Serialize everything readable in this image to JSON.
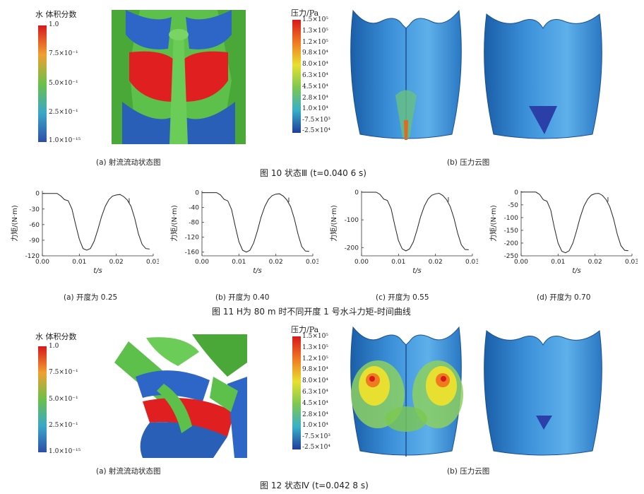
{
  "fig10": {
    "a": {
      "legend_title": "水 体积分数",
      "ticks": [
        "1.0",
        "7.5×10⁻¹",
        "5.0×10⁻¹",
        "2.5×10⁻¹",
        "1.0×10⁻¹⁵"
      ],
      "caption": "(a)  射流流动状态图"
    },
    "b": {
      "legend_title": "压力/Pa",
      "ticks": [
        "1.5×10⁵",
        "1.3×10⁵",
        "1.2×10⁵",
        "9.8×10⁴",
        "8.0×10⁴",
        "6.3×10⁴",
        "4.5×10⁴",
        "2.8×10⁴",
        "1.0×10⁴",
        "-7.5×10³",
        "-2.5×10⁴"
      ],
      "caption": "(b)  压力云图"
    },
    "title": "图 10    状态Ⅲ  (t=0.040 6 s)"
  },
  "fig11": {
    "title": "图 11    H为 80 m 时不同开度 1 号水斗力矩-时间曲线",
    "ylabel": "力矩/(N·m)",
    "xlabel": "t/s",
    "xticks": [
      "0.00",
      "0.01",
      "0.02",
      "0.03"
    ],
    "annotation": "I",
    "captions": [
      "(a)  开度为 0.25",
      "(b)  开度为 0.40",
      "(c)  开度为 0.55",
      "(d)  开度为 0.70"
    ]
  },
  "chart_data": [
    {
      "type": "line",
      "xlabel": "t/s",
      "ylabel": "力矩/(N·m)",
      "xlim": [
        0,
        0.03
      ],
      "ylim": [
        -120,
        5
      ],
      "yticks": [
        0,
        -30,
        -60,
        -90,
        -120
      ],
      "series": [
        {
          "x": [
            0,
            0.002,
            0.004,
            0.005,
            0.006,
            0.007,
            0.008,
            0.009,
            0.01,
            0.011,
            0.012,
            0.013,
            0.014,
            0.015,
            0.016,
            0.017,
            0.018,
            0.019,
            0.02,
            0.021,
            0.022,
            0.023,
            0.024,
            0.025,
            0.026,
            0.027,
            0.028,
            0.029
          ],
          "y": [
            0,
            0,
            0,
            -5,
            -12,
            -14,
            -30,
            -60,
            -88,
            -106,
            -109,
            -106,
            -92,
            -70,
            -45,
            -25,
            -12,
            -5,
            -3,
            -2,
            -6,
            -13,
            -25,
            -48,
            -78,
            -98,
            -106,
            -107
          ]
        }
      ]
    },
    {
      "type": "line",
      "xlabel": "t/s",
      "ylabel": "力矩/(N·m)",
      "xlim": [
        0,
        0.03
      ],
      "ylim": [
        -170,
        5
      ],
      "yticks": [
        0,
        -40,
        -80,
        -120,
        -160
      ],
      "series": [
        {
          "x": [
            0,
            0.002,
            0.004,
            0.005,
            0.006,
            0.007,
            0.008,
            0.009,
            0.01,
            0.011,
            0.012,
            0.013,
            0.014,
            0.015,
            0.016,
            0.017,
            0.018,
            0.019,
            0.02,
            0.021,
            0.022,
            0.023,
            0.024,
            0.025,
            0.026,
            0.027,
            0.028,
            0.029
          ],
          "y": [
            0,
            0,
            0,
            -6,
            -18,
            -22,
            -45,
            -90,
            -132,
            -155,
            -160,
            -155,
            -135,
            -103,
            -66,
            -37,
            -18,
            -8,
            -4,
            -3,
            -9,
            -20,
            -38,
            -70,
            -112,
            -145,
            -157,
            -158
          ]
        }
      ]
    },
    {
      "type": "line",
      "xlabel": "t/s",
      "ylabel": "力矩/(N·m)",
      "xlim": [
        0,
        0.03
      ],
      "ylim": [
        -230,
        5
      ],
      "yticks": [
        0,
        -100,
        -200
      ],
      "series": [
        {
          "x": [
            0,
            0.002,
            0.004,
            0.005,
            0.006,
            0.007,
            0.008,
            0.009,
            0.01,
            0.011,
            0.012,
            0.013,
            0.014,
            0.015,
            0.016,
            0.017,
            0.018,
            0.019,
            0.02,
            0.021,
            0.022,
            0.023,
            0.024,
            0.025,
            0.026,
            0.027,
            0.028,
            0.029
          ],
          "y": [
            0,
            0,
            0,
            -8,
            -25,
            -30,
            -60,
            -120,
            -175,
            -205,
            -212,
            -205,
            -180,
            -137,
            -88,
            -50,
            -25,
            -11,
            -6,
            -4,
            -12,
            -27,
            -52,
            -93,
            -148,
            -190,
            -207,
            -208
          ]
        }
      ]
    },
    {
      "type": "line",
      "xlabel": "t/s",
      "ylabel": "力矩/(N·m)",
      "xlim": [
        0,
        0.03
      ],
      "ylim": [
        -250,
        5
      ],
      "yticks": [
        0,
        -50,
        -100,
        -150,
        -200,
        -250
      ],
      "series": [
        {
          "x": [
            0,
            0.002,
            0.004,
            0.005,
            0.006,
            0.007,
            0.008,
            0.009,
            0.01,
            0.011,
            0.012,
            0.013,
            0.014,
            0.015,
            0.016,
            0.017,
            0.018,
            0.019,
            0.02,
            0.021,
            0.022,
            0.023,
            0.024,
            0.025,
            0.026,
            0.027,
            0.028,
            0.029
          ],
          "y": [
            0,
            0,
            0,
            -9,
            -30,
            -36,
            -70,
            -140,
            -200,
            -232,
            -238,
            -230,
            -200,
            -152,
            -98,
            -55,
            -28,
            -12,
            -6,
            -5,
            -13,
            -30,
            -58,
            -104,
            -165,
            -210,
            -228,
            -230
          ]
        }
      ]
    }
  ],
  "fig12": {
    "a": {
      "legend_title": "水 体积分数",
      "ticks": [
        "1.0",
        "7.5×10⁻¹",
        "5.0×10⁻¹",
        "2.5×10⁻¹",
        "1.0×10⁻¹⁵"
      ],
      "caption": "(a)  射流流动状态图"
    },
    "b": {
      "legend_title": "压力/Pa",
      "ticks": [
        "1.5×10⁵",
        "1.3×10⁵",
        "1.2×10⁵",
        "9.8×10⁴",
        "8.0×10⁴",
        "6.3×10⁴",
        "4.5×10⁴",
        "2.8×10⁴",
        "1.0×10⁴",
        "-7.5×10³",
        "-2.5×10⁴"
      ],
      "caption": "(b)  压力云图"
    },
    "title": "图 12    状态Ⅳ  (t=0.042 8 s)"
  }
}
